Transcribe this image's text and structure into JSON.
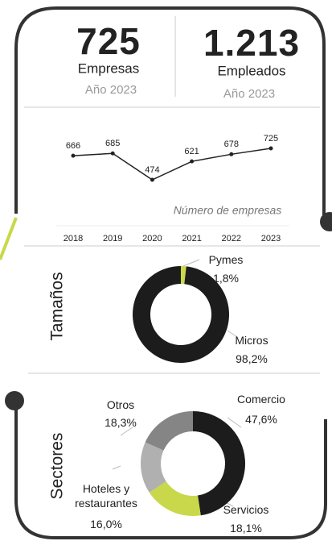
{
  "kpis": [
    {
      "value": "725",
      "label": "Empresas",
      "sub": "Año 2023"
    },
    {
      "value": "1.213",
      "label": "Empleados",
      "sub": "Año 2023"
    }
  ],
  "chart_data": [
    {
      "type": "line",
      "categories": [
        "2018",
        "2019",
        "2020",
        "2021",
        "2022",
        "2023"
      ],
      "values": [
        666,
        685,
        474,
        621,
        678,
        725
      ],
      "color": "#222",
      "annotation": "Número de empresas"
    },
    {
      "type": "donut",
      "title": "Tamaños",
      "categories": [
        "Pymes",
        "Micros"
      ],
      "values": [
        1.8,
        98.2
      ],
      "value_labels": [
        "1,8%",
        "98,2%"
      ],
      "colors": [
        "#c9d84a",
        "#1c1c1c"
      ]
    },
    {
      "type": "donut",
      "title": "Sectores",
      "categories": [
        "Comercio",
        "Servicios",
        "Hoteles y restaurantes",
        "Otros"
      ],
      "values": [
        47.6,
        18.1,
        16.0,
        18.3
      ],
      "value_labels": [
        "47,6%",
        "18,1%",
        "16,0%",
        "18,3%"
      ],
      "colors": [
        "#1c1c1c",
        "#c9d84a",
        "#b0b0b0",
        "#858585"
      ]
    }
  ]
}
